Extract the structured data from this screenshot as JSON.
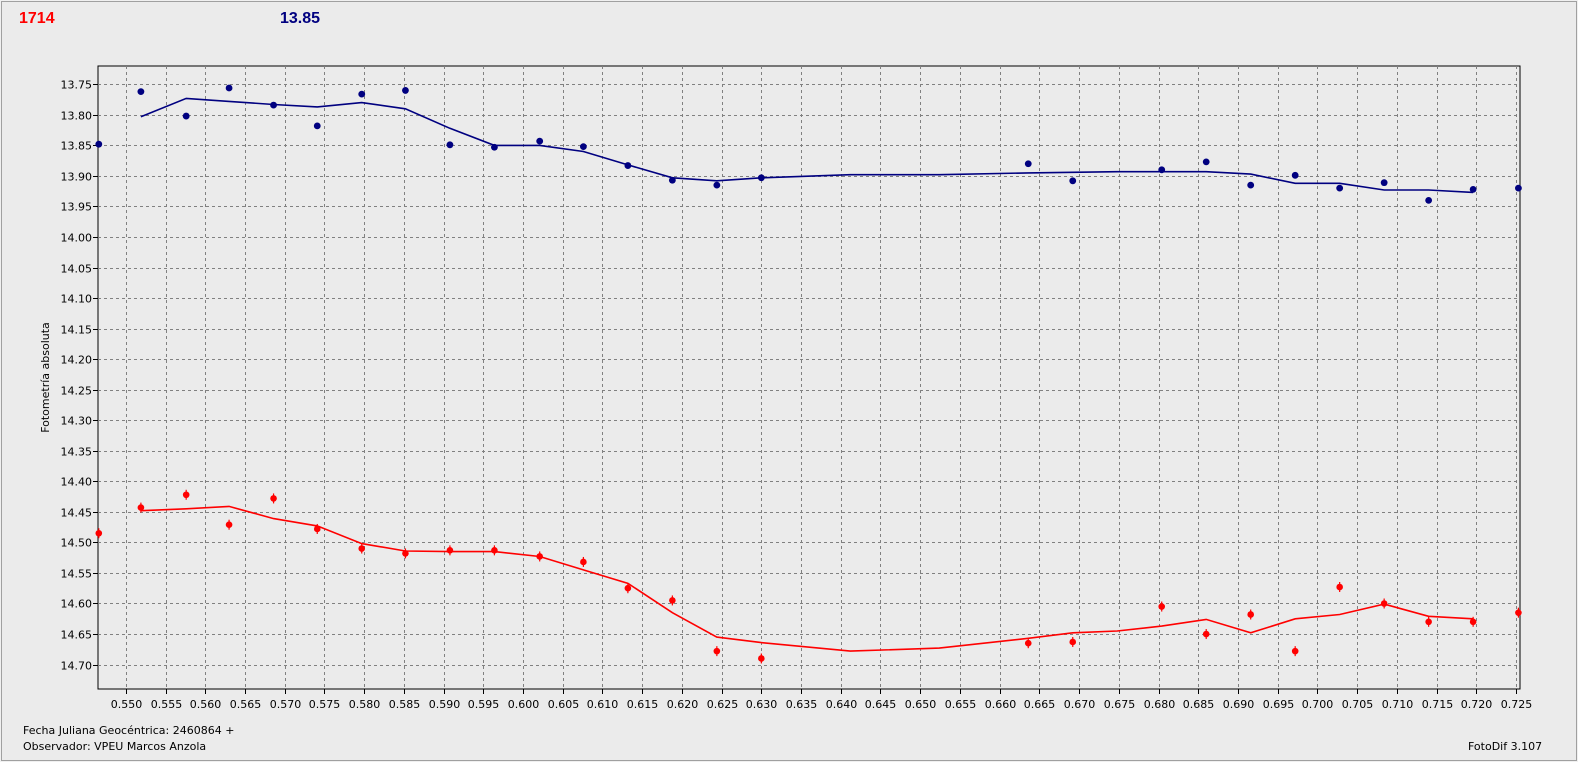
{
  "header": {
    "left_value": "1714",
    "right_value": "13.85"
  },
  "footer": {
    "julian_label": "Fecha Juliana Geocéntrica: 2460864 +",
    "observer_label": "Observador: VPEU Marcos Anzola",
    "software": "FotoDif 3.107"
  },
  "colors": {
    "red_series": "#ff0000",
    "blue_series": "#000080",
    "grid": "#808080",
    "plot_bg": "#ebebeb"
  },
  "chart_data": {
    "type": "scatter",
    "title": "",
    "xlabel": "",
    "ylabel": "Fotometría absoluta",
    "xlim": [
      0.5465,
      0.7255
    ],
    "ylim": [
      13.72,
      14.74
    ],
    "y_inverted": true,
    "grid": true,
    "x_ticks": [
      "0.550",
      "0.555",
      "0.560",
      "0.565",
      "0.570",
      "0.575",
      "0.580",
      "0.585",
      "0.590",
      "0.595",
      "0.600",
      "0.605",
      "0.610",
      "0.615",
      "0.620",
      "0.625",
      "0.630",
      "0.635",
      "0.640",
      "0.645",
      "0.650",
      "0.655",
      "0.660",
      "0.665",
      "0.670",
      "0.675",
      "0.680",
      "0.685",
      "0.690",
      "0.695",
      "0.700",
      "0.705",
      "0.710",
      "0.715",
      "0.720",
      "0.725"
    ],
    "y_ticks": [
      "13.75",
      "13.80",
      "13.85",
      "13.90",
      "13.95",
      "14.00",
      "14.05",
      "14.10",
      "14.15",
      "14.20",
      "14.25",
      "14.30",
      "14.35",
      "14.40",
      "14.45",
      "14.50",
      "14.55",
      "14.60",
      "14.65",
      "14.70"
    ],
    "series": [
      {
        "color": "#000080",
        "marker": "circle",
        "x": [
          0.5466,
          0.5519,
          0.5576,
          0.563,
          0.5686,
          0.5741,
          0.5797,
          0.5852,
          0.5908,
          0.5964,
          0.6021,
          0.6076,
          0.6132,
          0.6188,
          0.6244,
          0.63,
          0.6636,
          0.6692,
          0.6804,
          0.686,
          0.6916,
          0.6972,
          0.7028,
          0.7084,
          0.714,
          0.7196,
          0.7253
        ],
        "y": [
          13.848,
          13.762,
          13.802,
          13.756,
          13.784,
          13.818,
          13.766,
          13.76,
          13.849,
          13.853,
          13.843,
          13.852,
          13.883,
          13.907,
          13.915,
          13.903,
          13.88,
          13.908,
          13.89,
          13.877,
          13.915,
          13.899,
          13.92,
          13.911,
          13.94,
          13.922,
          13.92
        ]
      },
      {
        "color": "#000080",
        "marker": "line",
        "x": [
          0.5519,
          0.5576,
          0.563,
          0.5686,
          0.5741,
          0.5797,
          0.5852,
          0.5908,
          0.5964,
          0.6021,
          0.6076,
          0.6132,
          0.6188,
          0.6244,
          0.63,
          0.6412,
          0.6524,
          0.6636,
          0.6748,
          0.686,
          0.6916,
          0.6972,
          0.7028,
          0.7084,
          0.714,
          0.7196
        ],
        "y": [
          13.803,
          13.773,
          13.778,
          13.783,
          13.787,
          13.78,
          13.79,
          13.822,
          13.85,
          13.85,
          13.86,
          13.882,
          13.903,
          13.908,
          13.903,
          13.898,
          13.898,
          13.895,
          13.893,
          13.893,
          13.897,
          13.912,
          13.912,
          13.923,
          13.923,
          13.927
        ]
      },
      {
        "color": "#ff0000",
        "marker": "diamond",
        "x": [
          0.5466,
          0.5519,
          0.5576,
          0.563,
          0.5686,
          0.5741,
          0.5797,
          0.5852,
          0.5908,
          0.5964,
          0.6021,
          0.6076,
          0.6132,
          0.6188,
          0.6244,
          0.63,
          0.6636,
          0.6692,
          0.6804,
          0.686,
          0.6916,
          0.6972,
          0.7028,
          0.7084,
          0.714,
          0.7196,
          0.7253
        ],
        "y": [
          14.485,
          14.443,
          14.422,
          14.471,
          14.428,
          14.478,
          14.51,
          14.518,
          14.513,
          14.513,
          14.523,
          14.532,
          14.575,
          14.595,
          14.678,
          14.69,
          14.665,
          14.663,
          14.605,
          14.65,
          14.618,
          14.678,
          14.573,
          14.6,
          14.63,
          14.63,
          14.615
        ]
      },
      {
        "color": "#ff0000",
        "marker": "line",
        "x": [
          0.5519,
          0.5576,
          0.563,
          0.5686,
          0.5741,
          0.5797,
          0.5852,
          0.5908,
          0.5964,
          0.6021,
          0.6076,
          0.6132,
          0.6188,
          0.6244,
          0.63,
          0.6412,
          0.6524,
          0.6636,
          0.6692,
          0.6748,
          0.6804,
          0.686,
          0.6916,
          0.6972,
          0.7028,
          0.7084,
          0.714,
          0.7196
        ],
        "y": [
          14.448,
          14.445,
          14.441,
          14.461,
          14.473,
          14.502,
          14.514,
          14.515,
          14.515,
          14.523,
          14.545,
          14.567,
          14.615,
          14.655,
          14.664,
          14.678,
          14.673,
          14.657,
          14.648,
          14.645,
          14.637,
          14.626,
          14.648,
          14.625,
          14.618,
          14.601,
          14.621,
          14.625
        ]
      }
    ]
  }
}
